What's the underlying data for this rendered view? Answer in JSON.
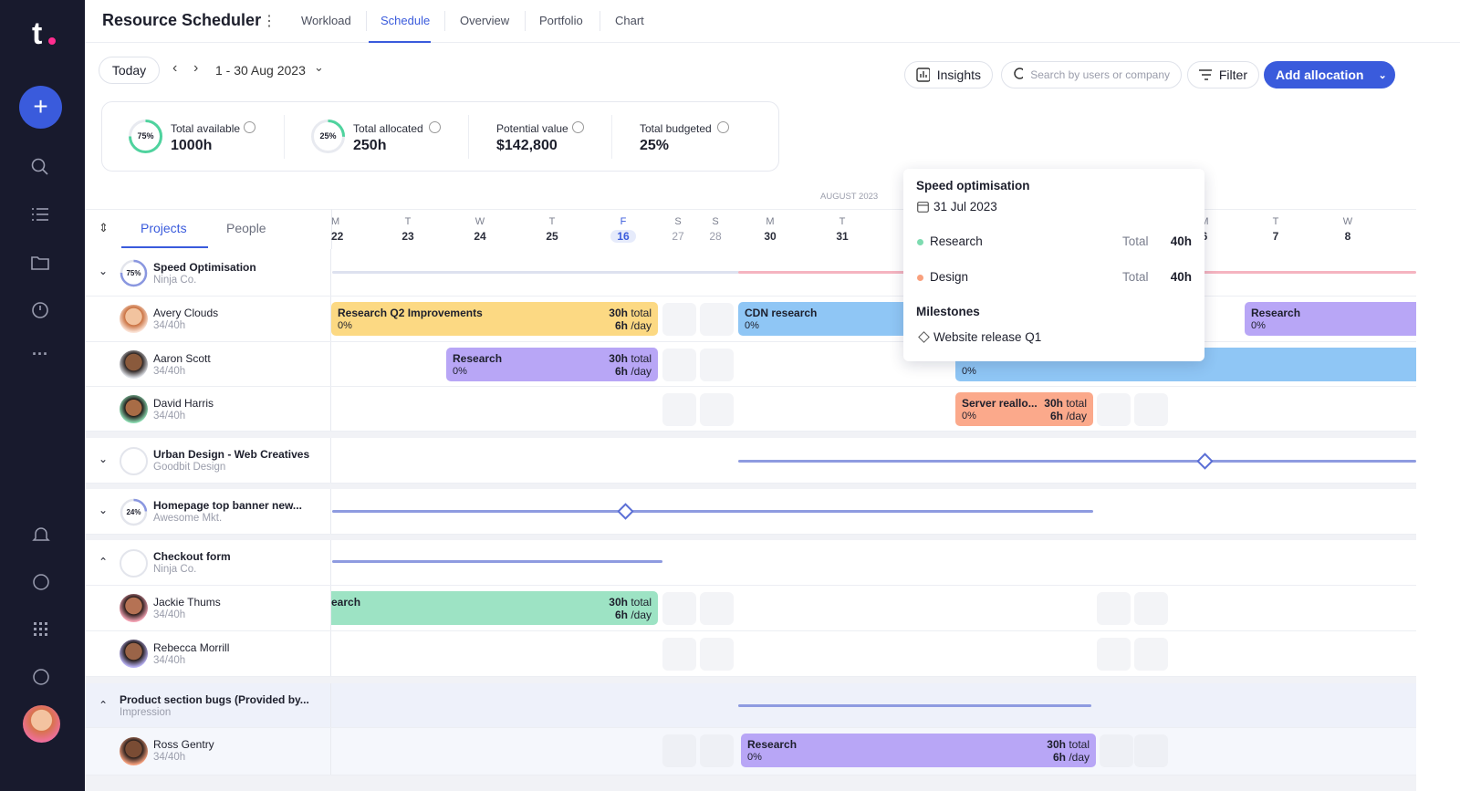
{
  "sidebar": {
    "logo": "t"
  },
  "header": {
    "title": "Resource Scheduler",
    "tabs": [
      "Workload",
      "Schedule",
      "Overview",
      "Portfolio",
      "Chart"
    ]
  },
  "toolbar": {
    "today": "Today",
    "range": "1 - 30 Aug 2023",
    "insights": "Insights",
    "search_placeholder": "Search by users or company",
    "filter": "Filter",
    "add": "Add allocation"
  },
  "stats": [
    {
      "ring": "75%",
      "label": "Total available",
      "value": "1000h"
    },
    {
      "ring": "25%",
      "label": "Total allocated",
      "value": "250h"
    },
    {
      "label": "Potential value",
      "value": "$142,800"
    },
    {
      "label": "Total budgeted",
      "value": "25%"
    }
  ],
  "schedule": {
    "tabs": [
      "Projects",
      "People"
    ],
    "month": "AUGUST 2023",
    "total_label": "total",
    "rate_label": "/day",
    "days": [
      {
        "weekday": "M",
        "date": "22"
      },
      {
        "weekday": "T",
        "date": "23"
      },
      {
        "weekday": "W",
        "date": "24"
      },
      {
        "weekday": "T",
        "date": "25"
      },
      {
        "weekday": "F",
        "date": "16"
      },
      {
        "weekday": "S",
        "date": "27"
      },
      {
        "weekday": "S",
        "date": "28"
      },
      {
        "weekday": "M",
        "date": "30"
      },
      {
        "weekday": "T",
        "date": "31"
      },
      {
        "weekday": "M",
        "date": "6"
      },
      {
        "weekday": "T",
        "date": "7"
      },
      {
        "weekday": "W",
        "date": "8"
      }
    ],
    "projects": [
      {
        "name": "Speed Optimisation",
        "client": "Ninja Co.",
        "ring": "75%",
        "people": [
          {
            "name": "Avery Clouds",
            "hours": "34/40h",
            "allocations": [
              {
                "title": "Research Q2 Improvements",
                "progress": "0%",
                "hours": "30h",
                "rate": "6h"
              },
              {
                "title": "CDN research",
                "progress": "0%"
              },
              {
                "title": "Research",
                "progress": "0%"
              }
            ]
          },
          {
            "name": "Aaron Scott",
            "hours": "34/40h",
            "allocations": [
              {
                "title": "Research",
                "progress": "0%",
                "hours": "30h",
                "rate": "6h"
              },
              {
                "progress": "0%"
              }
            ]
          },
          {
            "name": "David Harris",
            "hours": "34/40h",
            "allocations": [
              {
                "title": "Server reallo...",
                "progress": "0%",
                "hours": "30h",
                "rate": "6h"
              }
            ]
          }
        ]
      },
      {
        "name": "Urban Design - Web Creatives",
        "client": "Goodbit Design"
      },
      {
        "name": "Homepage top banner new...",
        "client": "Awesome Mkt.",
        "ring": "24%"
      },
      {
        "name": "Checkout form",
        "client": "Ninja Co.",
        "people": [
          {
            "name": "Jackie Thums",
            "hours": "34/40h",
            "allocations": [
              {
                "title": "earch",
                "hours": "30h",
                "rate": "6h"
              }
            ]
          },
          {
            "name": "Rebecca Morrill",
            "hours": "34/40h"
          }
        ]
      },
      {
        "name": "Product section bugs (Provided by...",
        "client": "Impression",
        "people": [
          {
            "name": "Ross Gentry",
            "hours": "34/40h",
            "allocations": [
              {
                "title": "Research",
                "progress": "0%",
                "hours": "30h",
                "rate": "6h"
              }
            ]
          }
        ]
      }
    ]
  },
  "popup": {
    "title": "Speed optimisation",
    "date": "31 Jul 2023",
    "items": [
      {
        "name": "Research",
        "label": "Total",
        "value": "40h"
      },
      {
        "name": "Design",
        "label": "Total",
        "value": "40h"
      }
    ],
    "milestones_title": "Milestones",
    "milestones": [
      "Website release Q1"
    ]
  }
}
